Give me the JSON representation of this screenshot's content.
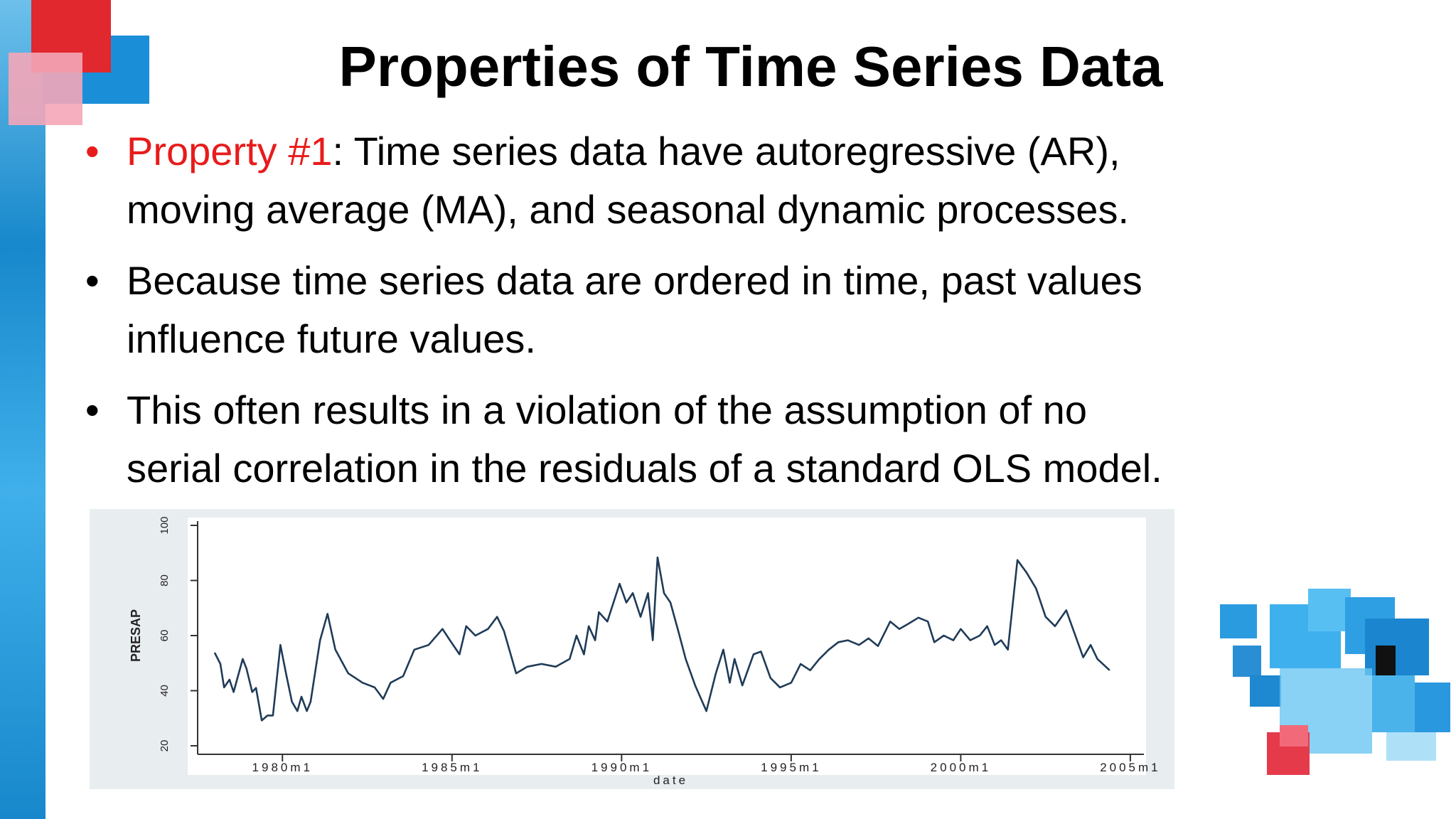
{
  "slide": {
    "title": "Properties of Time Series Data",
    "bullets": [
      {
        "label": "Property #1",
        "lines": [
          ": Time series data have autoregressive (AR),",
          "moving average (MA), and seasonal dynamic processes."
        ]
      },
      {
        "lines": [
          "Because time series data are ordered in time, past values",
          "influence future values."
        ]
      },
      {
        "lines": [
          "This often results in a violation of the assumption of no",
          "serial correlation in the residuals of a standard OLS model."
        ]
      }
    ]
  },
  "chart_data": {
    "type": "line",
    "x_label": "date",
    "y_label": "PRESAP",
    "color": "#1f3b57",
    "x": [
      1978.0,
      1978.17,
      1978.28,
      1978.44,
      1978.56,
      1978.83,
      1978.94,
      1979.11,
      1979.22,
      1979.39,
      1979.56,
      1979.72,
      1979.94,
      1980.11,
      1980.28,
      1980.44,
      1980.56,
      1980.72,
      1980.83,
      1981.11,
      1981.33,
      1981.56,
      1981.94,
      1982.36,
      1982.72,
      1982.97,
      1983.19,
      1983.56,
      1983.89,
      1984.31,
      1984.72,
      1984.94,
      1985.22,
      1985.42,
      1985.69,
      1986.06,
      1986.33,
      1986.53,
      1986.89,
      1987.22,
      1987.64,
      1988.06,
      1988.47,
      1988.67,
      1988.89,
      1989.03,
      1989.22,
      1989.33,
      1989.58,
      1989.94,
      1990.14,
      1990.33,
      1990.56,
      1990.78,
      1990.92,
      1991.06,
      1991.25,
      1991.44,
      1991.67,
      1991.89,
      1992.17,
      1992.5,
      1992.78,
      1993.0,
      1993.19,
      1993.33,
      1993.56,
      1993.89,
      1994.11,
      1994.39,
      1994.67,
      1995.0,
      1995.28,
      1995.56,
      1995.83,
      1996.11,
      1996.39,
      1996.67,
      1997.0,
      1997.28,
      1997.56,
      1997.92,
      1998.19,
      1998.47,
      1998.75,
      1999.03,
      1999.22,
      1999.5,
      1999.78,
      2000.0,
      2000.28,
      2000.56,
      2000.78,
      2001.0,
      2001.19,
      2001.39,
      2001.67,
      2001.94,
      2002.22,
      2002.5,
      2002.78,
      2003.11,
      2003.33,
      2003.61,
      2003.83,
      2004.03,
      2004.39
    ],
    "values": [
      53.8,
      49.7,
      41.2,
      44,
      39.5,
      51.5,
      48,
      39.5,
      41,
      29.2,
      31,
      31,
      56.6,
      46,
      36,
      32.6,
      37.8,
      32.6,
      36,
      58.3,
      67.9,
      54.9,
      46.3,
      42.9,
      41.2,
      37,
      42.9,
      45.3,
      54.9,
      56.6,
      62.4,
      58.3,
      53.2,
      63.4,
      60,
      62.4,
      66.8,
      61.7,
      46.3,
      48.7,
      49.7,
      48.7,
      51.5,
      60,
      53.2,
      63.4,
      58.3,
      68.5,
      65.1,
      78.8,
      72,
      75.4,
      66.8,
      75.4,
      58.3,
      88.4,
      75.4,
      72,
      61.7,
      51.5,
      41.9,
      32.6,
      46.3,
      54.9,
      42.9,
      51.5,
      41.9,
      53.2,
      54.2,
      44.6,
      41.2,
      42.9,
      49.7,
      47.4,
      51.5,
      54.9,
      57.6,
      58.3,
      56.6,
      59,
      56.2,
      65.1,
      62.4,
      64.4,
      66.5,
      65.1,
      57.6,
      60,
      58.3,
      62.4,
      58.3,
      60,
      63.4,
      56.6,
      58.3,
      54.9,
      87.4,
      82.9,
      77.1,
      66.8,
      63.4,
      69.2,
      61.7,
      52.1,
      56.6,
      51.5,
      47.4
    ],
    "xlim": [
      1977.5,
      2005.4
    ],
    "xticks": [
      {
        "value": 1980,
        "label": "1980m1"
      },
      {
        "value": 1985,
        "label": "1985m1"
      },
      {
        "value": 1990,
        "label": "1990m1"
      },
      {
        "value": 1995,
        "label": "1995m1"
      },
      {
        "value": 2000,
        "label": "2000m1"
      },
      {
        "value": 2005,
        "label": "2005m1"
      }
    ],
    "ylim": [
      20,
      100
    ],
    "yticks": [
      20,
      40,
      60,
      80,
      100
    ]
  }
}
